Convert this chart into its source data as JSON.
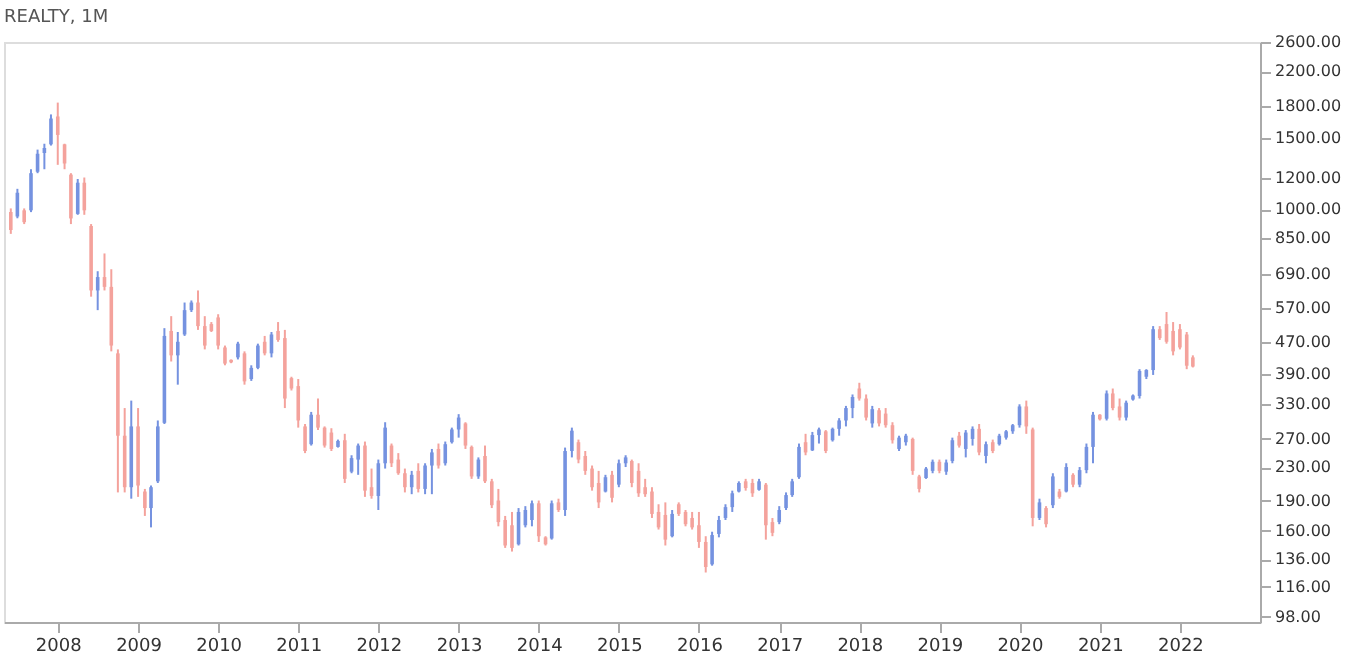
{
  "chart_data": {
    "type": "candlestick",
    "title": "REALTY, 1M",
    "log": true,
    "grid": false,
    "legend": false,
    "x": [
      "2007-06",
      "2007-07",
      "2007-08",
      "2007-09",
      "2007-10",
      "2007-11",
      "2007-12",
      "2008-01",
      "2008-02",
      "2008-03",
      "2008-04",
      "2008-05",
      "2008-06",
      "2008-07",
      "2008-08",
      "2008-09",
      "2008-10",
      "2008-11",
      "2008-12",
      "2009-01",
      "2009-02",
      "2009-03",
      "2009-04",
      "2009-05",
      "2009-06",
      "2009-07",
      "2009-08",
      "2009-09",
      "2009-10",
      "2009-11",
      "2009-12",
      "2010-01",
      "2010-02",
      "2010-03",
      "2010-04",
      "2010-05",
      "2010-06",
      "2010-07",
      "2010-08",
      "2010-09",
      "2010-10",
      "2010-11",
      "2010-12",
      "2011-01",
      "2011-02",
      "2011-03",
      "2011-04",
      "2011-05",
      "2011-06",
      "2011-07",
      "2011-08",
      "2011-09",
      "2011-10",
      "2011-11",
      "2011-12",
      "2012-01",
      "2012-02",
      "2012-03",
      "2012-04",
      "2012-05",
      "2012-06",
      "2012-07",
      "2012-08",
      "2012-09",
      "2012-10",
      "2012-11",
      "2012-12",
      "2013-01",
      "2013-02",
      "2013-03",
      "2013-04",
      "2013-05",
      "2013-06",
      "2013-07",
      "2013-08",
      "2013-09",
      "2013-10",
      "2013-11",
      "2013-12",
      "2014-01",
      "2014-02",
      "2014-03",
      "2014-04",
      "2014-05",
      "2014-06",
      "2014-07",
      "2014-08",
      "2014-09",
      "2014-10",
      "2014-11",
      "2014-12",
      "2015-01",
      "2015-02",
      "2015-03",
      "2015-04",
      "2015-05",
      "2015-06",
      "2015-07",
      "2015-08",
      "2015-09",
      "2015-10",
      "2015-11",
      "2015-12",
      "2016-01",
      "2016-02",
      "2016-03",
      "2016-04",
      "2016-05",
      "2016-06",
      "2016-07",
      "2016-08",
      "2016-09",
      "2016-10",
      "2016-11",
      "2016-12",
      "2017-01",
      "2017-02",
      "2017-03",
      "2017-04",
      "2017-05",
      "2017-06",
      "2017-07",
      "2017-08",
      "2017-09",
      "2017-10",
      "2017-11",
      "2017-12",
      "2018-01",
      "2018-02",
      "2018-03",
      "2018-04",
      "2018-05",
      "2018-06",
      "2018-07",
      "2018-08",
      "2018-09",
      "2018-10",
      "2018-11",
      "2018-12",
      "2019-01",
      "2019-02",
      "2019-03",
      "2019-04",
      "2019-05",
      "2019-06",
      "2019-07",
      "2019-08",
      "2019-09",
      "2019-10",
      "2019-11",
      "2019-12",
      "2020-01",
      "2020-02",
      "2020-03",
      "2020-04",
      "2020-05",
      "2020-06",
      "2020-07",
      "2020-08",
      "2020-09",
      "2020-10",
      "2020-11",
      "2020-12",
      "2021-01",
      "2021-02",
      "2021-03",
      "2021-04",
      "2021-05",
      "2021-06",
      "2021-07",
      "2021-08",
      "2021-09",
      "2021-10",
      "2021-11",
      "2021-12",
      "2022-01",
      "2022-02",
      "2022-03"
    ],
    "ohlc": [
      [
        985,
        1006,
        870,
        890
      ],
      [
        960,
        1125,
        951,
        1100
      ],
      [
        995,
        1006,
        920,
        930
      ],
      [
        995,
        1258,
        985,
        1230
      ],
      [
        1240,
        1407,
        1230,
        1375
      ],
      [
        1380,
        1455,
        1258,
        1420
      ],
      [
        1450,
        1720,
        1440,
        1680
      ],
      [
        1700,
        1840,
        1290,
        1530
      ],
      [
        1450,
        1455,
        1258,
        1300
      ],
      [
        1220,
        1230,
        920,
        950
      ],
      [
        975,
        1190,
        970,
        1165
      ],
      [
        1165,
        1200,
        970,
        995
      ],
      [
        910,
        920,
        608,
        630
      ],
      [
        630,
        703,
        563,
        680
      ],
      [
        680,
        778,
        630,
        643
      ],
      [
        643,
        711,
        445,
        460
      ],
      [
        440,
        450,
        199,
        275
      ],
      [
        275,
        322,
        199,
        205
      ],
      [
        205,
        336,
        192,
        290
      ],
      [
        290,
        322,
        194,
        207
      ],
      [
        200,
        203,
        174,
        182
      ],
      [
        182,
        207,
        163,
        205
      ],
      [
        212,
        300,
        210,
        290
      ],
      [
        296,
        508,
        294,
        486
      ],
      [
        500,
        544,
        420,
        435
      ],
      [
        435,
        497,
        368,
        470
      ],
      [
        490,
        588,
        486,
        563
      ],
      [
        563,
        595,
        557,
        588
      ],
      [
        588,
        630,
        503,
        514
      ],
      [
        514,
        544,
        450,
        460
      ],
      [
        520,
        526,
        497,
        500
      ],
      [
        540,
        550,
        450,
        460
      ],
      [
        455,
        460,
        411,
        415
      ],
      [
        424,
        425,
        416,
        418
      ],
      [
        430,
        470,
        425,
        465
      ],
      [
        440,
        445,
        368,
        375
      ],
      [
        380,
        411,
        376,
        405
      ],
      [
        405,
        465,
        402,
        460
      ],
      [
        470,
        486,
        435,
        440
      ],
      [
        440,
        497,
        430,
        490
      ],
      [
        500,
        526,
        470,
        475
      ],
      [
        480,
        503,
        322,
        340
      ],
      [
        382,
        385,
        356,
        360
      ],
      [
        365,
        380,
        288,
        300
      ],
      [
        290,
        294,
        249,
        252
      ],
      [
        262,
        315,
        260,
        310
      ],
      [
        310,
        340,
        284,
        288
      ],
      [
        288,
        290,
        257,
        260
      ],
      [
        280,
        287,
        252,
        255
      ],
      [
        258,
        269,
        257,
        267
      ],
      [
        268,
        278,
        210,
        215
      ],
      [
        224,
        246,
        222,
        242
      ],
      [
        240,
        263,
        220,
        260
      ],
      [
        260,
        266,
        194,
        201
      ],
      [
        205,
        228,
        192,
        195
      ],
      [
        195,
        240,
        180,
        235
      ],
      [
        235,
        297,
        228,
        288
      ],
      [
        260,
        263,
        230,
        235
      ],
      [
        240,
        249,
        220,
        222
      ],
      [
        222,
        228,
        199,
        205
      ],
      [
        205,
        225,
        197,
        220
      ],
      [
        225,
        235,
        199,
        203
      ],
      [
        203,
        235,
        197,
        232
      ],
      [
        232,
        255,
        197,
        250
      ],
      [
        255,
        263,
        228,
        232
      ],
      [
        235,
        266,
        232,
        262
      ],
      [
        265,
        288,
        263,
        285
      ],
      [
        285,
        311,
        272,
        305
      ],
      [
        295,
        297,
        255,
        260
      ],
      [
        258,
        260,
        215,
        218
      ],
      [
        218,
        243,
        215,
        240
      ],
      [
        245,
        260,
        210,
        212
      ],
      [
        212,
        215,
        182,
        185
      ],
      [
        190,
        203,
        164,
        168
      ],
      [
        170,
        174,
        145,
        147
      ],
      [
        165,
        178,
        142,
        145
      ],
      [
        148,
        182,
        147,
        178
      ],
      [
        165,
        184,
        163,
        180
      ],
      [
        170,
        190,
        164,
        187
      ],
      [
        187,
        190,
        150,
        155
      ],
      [
        154,
        155,
        147,
        148
      ],
      [
        153,
        190,
        152,
        187
      ],
      [
        188,
        192,
        178,
        180
      ],
      [
        180,
        257,
        174,
        252
      ],
      [
        252,
        288,
        243,
        283
      ],
      [
        265,
        269,
        235,
        240
      ],
      [
        245,
        252,
        220,
        225
      ],
      [
        228,
        232,
        201,
        205
      ],
      [
        210,
        225,
        182,
        188
      ],
      [
        200,
        220,
        199,
        217
      ],
      [
        220,
        225,
        188,
        193
      ],
      [
        208,
        240,
        205,
        235
      ],
      [
        235,
        246,
        230,
        243
      ],
      [
        238,
        240,
        205,
        210
      ],
      [
        225,
        235,
        194,
        198
      ],
      [
        205,
        215,
        194,
        197
      ],
      [
        200,
        205,
        172,
        176
      ],
      [
        178,
        186,
        161,
        163
      ],
      [
        175,
        188,
        147,
        152
      ],
      [
        155,
        180,
        154,
        176
      ],
      [
        186,
        188,
        174,
        176
      ],
      [
        178,
        180,
        164,
        166
      ],
      [
        172,
        178,
        161,
        163
      ],
      [
        165,
        178,
        145,
        150
      ],
      [
        150,
        155,
        126,
        130
      ],
      [
        132,
        159,
        131,
        156
      ],
      [
        157,
        174,
        154,
        170
      ],
      [
        172,
        186,
        170,
        183
      ],
      [
        183,
        201,
        178,
        198
      ],
      [
        200,
        212,
        199,
        210
      ],
      [
        212,
        215,
        201,
        204
      ],
      [
        210,
        215,
        194,
        198
      ],
      [
        202,
        215,
        201,
        212
      ],
      [
        208,
        210,
        152,
        165
      ],
      [
        168,
        172,
        155,
        158
      ],
      [
        168,
        184,
        166,
        180
      ],
      [
        182,
        199,
        180,
        196
      ],
      [
        196,
        215,
        194,
        212
      ],
      [
        217,
        263,
        215,
        258
      ],
      [
        265,
        278,
        246,
        250
      ],
      [
        253,
        281,
        252,
        276
      ],
      [
        276,
        288,
        263,
        285
      ],
      [
        282,
        284,
        249,
        252
      ],
      [
        268,
        288,
        266,
        286
      ],
      [
        286,
        304,
        275,
        300
      ],
      [
        300,
        326,
        290,
        322
      ],
      [
        322,
        348,
        304,
        343
      ],
      [
        360,
        372,
        336,
        340
      ],
      [
        340,
        348,
        300,
        305
      ],
      [
        295,
        326,
        288,
        320
      ],
      [
        318,
        322,
        290,
        295
      ],
      [
        312,
        322,
        288,
        292
      ],
      [
        292,
        297,
        263,
        268
      ],
      [
        255,
        275,
        252,
        272
      ],
      [
        265,
        278,
        260,
        275
      ],
      [
        270,
        272,
        220,
        225
      ],
      [
        218,
        220,
        199,
        203
      ],
      [
        216,
        230,
        215,
        228
      ],
      [
        225,
        240,
        222,
        237
      ],
      [
        237,
        240,
        222,
        225
      ],
      [
        224,
        240,
        220,
        236
      ],
      [
        238,
        272,
        235,
        268
      ],
      [
        275,
        281,
        257,
        260
      ],
      [
        255,
        284,
        243,
        280
      ],
      [
        270,
        290,
        260,
        286
      ],
      [
        286,
        294,
        246,
        250
      ],
      [
        245,
        266,
        235,
        262
      ],
      [
        265,
        269,
        249,
        252
      ],
      [
        262,
        278,
        260,
        275
      ],
      [
        272,
        284,
        269,
        282
      ],
      [
        282,
        294,
        278,
        292
      ],
      [
        292,
        329,
        288,
        325
      ],
      [
        325,
        336,
        278,
        290
      ],
      [
        285,
        288,
        164,
        172
      ],
      [
        172,
        192,
        170,
        188
      ],
      [
        182,
        184,
        163,
        166
      ],
      [
        185,
        222,
        182,
        218
      ],
      [
        200,
        203,
        192,
        194
      ],
      [
        200,
        235,
        199,
        230
      ],
      [
        220,
        222,
        205,
        208
      ],
      [
        208,
        230,
        205,
        226
      ],
      [
        226,
        263,
        222,
        258
      ],
      [
        258,
        315,
        235,
        310
      ],
      [
        310,
        311,
        300,
        302
      ],
      [
        303,
        356,
        300,
        350
      ],
      [
        350,
        360,
        318,
        322
      ],
      [
        325,
        340,
        300,
        305
      ],
      [
        305,
        336,
        300,
        332
      ],
      [
        338,
        348,
        336,
        346
      ],
      [
        345,
        402,
        340,
        398
      ],
      [
        385,
        402,
        380,
        400
      ],
      [
        400,
        514,
        389,
        505
      ],
      [
        505,
        514,
        475,
        480
      ],
      [
        520,
        557,
        465,
        470
      ],
      [
        500,
        526,
        435,
        445
      ],
      [
        505,
        520,
        450,
        455
      ],
      [
        490,
        497,
        402,
        410
      ],
      [
        430,
        435,
        406,
        408
      ]
    ],
    "xlim": [
      "2007-05",
      "2023-01"
    ],
    "xticks": [
      {
        "value": "2008",
        "label": "2008"
      },
      {
        "value": "2009",
        "label": "2009"
      },
      {
        "value": "2010",
        "label": "2010"
      },
      {
        "value": "2011",
        "label": "2011"
      },
      {
        "value": "2012",
        "label": "2012"
      },
      {
        "value": "2013",
        "label": "2013"
      },
      {
        "value": "2014",
        "label": "2014"
      },
      {
        "value": "2015",
        "label": "2015"
      },
      {
        "value": "2016",
        "label": "2016"
      },
      {
        "value": "2017",
        "label": "2017"
      },
      {
        "value": "2018",
        "label": "2018"
      },
      {
        "value": "2019",
        "label": "2019"
      },
      {
        "value": "2020",
        "label": "2020"
      },
      {
        "value": "2021",
        "label": "2021"
      },
      {
        "value": "2022",
        "label": "2022"
      }
    ],
    "ylim": [
      95,
      2600
    ],
    "yticks": [
      {
        "value": 2600,
        "label": "2600.00"
      },
      {
        "value": 2200,
        "label": "2200.00"
      },
      {
        "value": 1800,
        "label": "1800.00"
      },
      {
        "value": 1500,
        "label": "1500.00"
      },
      {
        "value": 1200,
        "label": "1200.00"
      },
      {
        "value": 1000,
        "label": "1000.00"
      },
      {
        "value": 850,
        "label": "850.00"
      },
      {
        "value": 690,
        "label": "690.00"
      },
      {
        "value": 570,
        "label": "570.00"
      },
      {
        "value": 470,
        "label": "470.00"
      },
      {
        "value": 390,
        "label": "390.00"
      },
      {
        "value": 330,
        "label": "330.00"
      },
      {
        "value": 270,
        "label": "270.00"
      },
      {
        "value": 230,
        "label": "230.00"
      },
      {
        "value": 190,
        "label": "190.00"
      },
      {
        "value": 160,
        "label": "160.00"
      },
      {
        "value": 136,
        "label": "136.00"
      },
      {
        "value": 116,
        "label": "116.00"
      },
      {
        "value": 98,
        "label": "98.00"
      }
    ]
  }
}
